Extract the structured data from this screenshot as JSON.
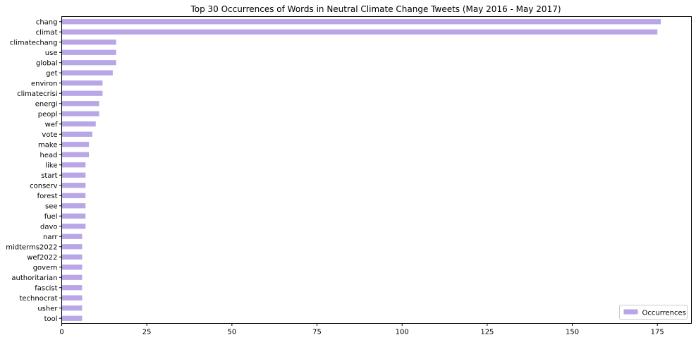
{
  "chart_data": {
    "type": "bar",
    "orientation": "horizontal",
    "title": "Top 30 Occurrences of Words in Neutral Climate Change Tweets (May 2016 - May 2017)",
    "xlabel": "",
    "ylabel": "",
    "xlim": [
      0,
      185
    ],
    "xticks": [
      0,
      25,
      50,
      75,
      100,
      125,
      150,
      175
    ],
    "grid": false,
    "legend_position": "lower-right",
    "bar_color": "#b9a6e6",
    "categories": [
      "chang",
      "climat",
      "climatechang",
      "use",
      "global",
      "get",
      "environ",
      "climatecrisi",
      "energi",
      "peopl",
      "wef",
      "vote",
      "make",
      "head",
      "like",
      "start",
      "conserv",
      "forest",
      "see",
      "fuel",
      "davo",
      "narr",
      "midterms2022",
      "wef2022",
      "govern",
      "authoritarian",
      "fascist",
      "technocrat",
      "usher",
      "tool"
    ],
    "series": [
      {
        "name": "Occurrences",
        "values": [
          176,
          175,
          16,
          16,
          16,
          15,
          12,
          12,
          11,
          11,
          10,
          9,
          8,
          8,
          7,
          7,
          7,
          7,
          7,
          7,
          7,
          6,
          6,
          6,
          6,
          6,
          6,
          6,
          6,
          6
        ]
      }
    ]
  }
}
